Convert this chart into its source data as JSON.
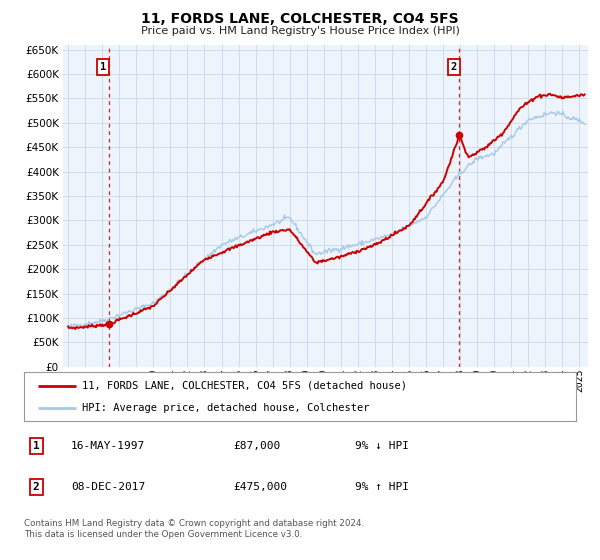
{
  "title": "11, FORDS LANE, COLCHESTER, CO4 5FS",
  "subtitle": "Price paid vs. HM Land Registry's House Price Index (HPI)",
  "xlim": [
    1994.7,
    2025.5
  ],
  "ylim": [
    0,
    660000
  ],
  "yticks": [
    0,
    50000,
    100000,
    150000,
    200000,
    250000,
    300000,
    350000,
    400000,
    450000,
    500000,
    550000,
    600000,
    650000
  ],
  "ytick_labels": [
    "£0",
    "£50K",
    "£100K",
    "£150K",
    "£200K",
    "£250K",
    "£300K",
    "£350K",
    "£400K",
    "£450K",
    "£500K",
    "£550K",
    "£600K",
    "£650K"
  ],
  "hpi_color": "#a8c8e8",
  "price_color": "#cc0000",
  "vline_color": "#cc0000",
  "marker1_x": 1997.37,
  "marker1_y": 87000,
  "marker2_x": 2017.93,
  "marker2_y": 475000,
  "legend_line1": "11, FORDS LANE, COLCHESTER, CO4 5FS (detached house)",
  "legend_line2": "HPI: Average price, detached house, Colchester",
  "table_row1": [
    "1",
    "16-MAY-1997",
    "£87,000",
    "9% ↓ HPI"
  ],
  "table_row2": [
    "2",
    "08-DEC-2017",
    "£475,000",
    "9% ↑ HPI"
  ],
  "footnote1": "Contains HM Land Registry data © Crown copyright and database right 2024.",
  "footnote2": "This data is licensed under the Open Government Licence v3.0.",
  "background_color": "#ffffff",
  "grid_color": "#c8d8e8"
}
